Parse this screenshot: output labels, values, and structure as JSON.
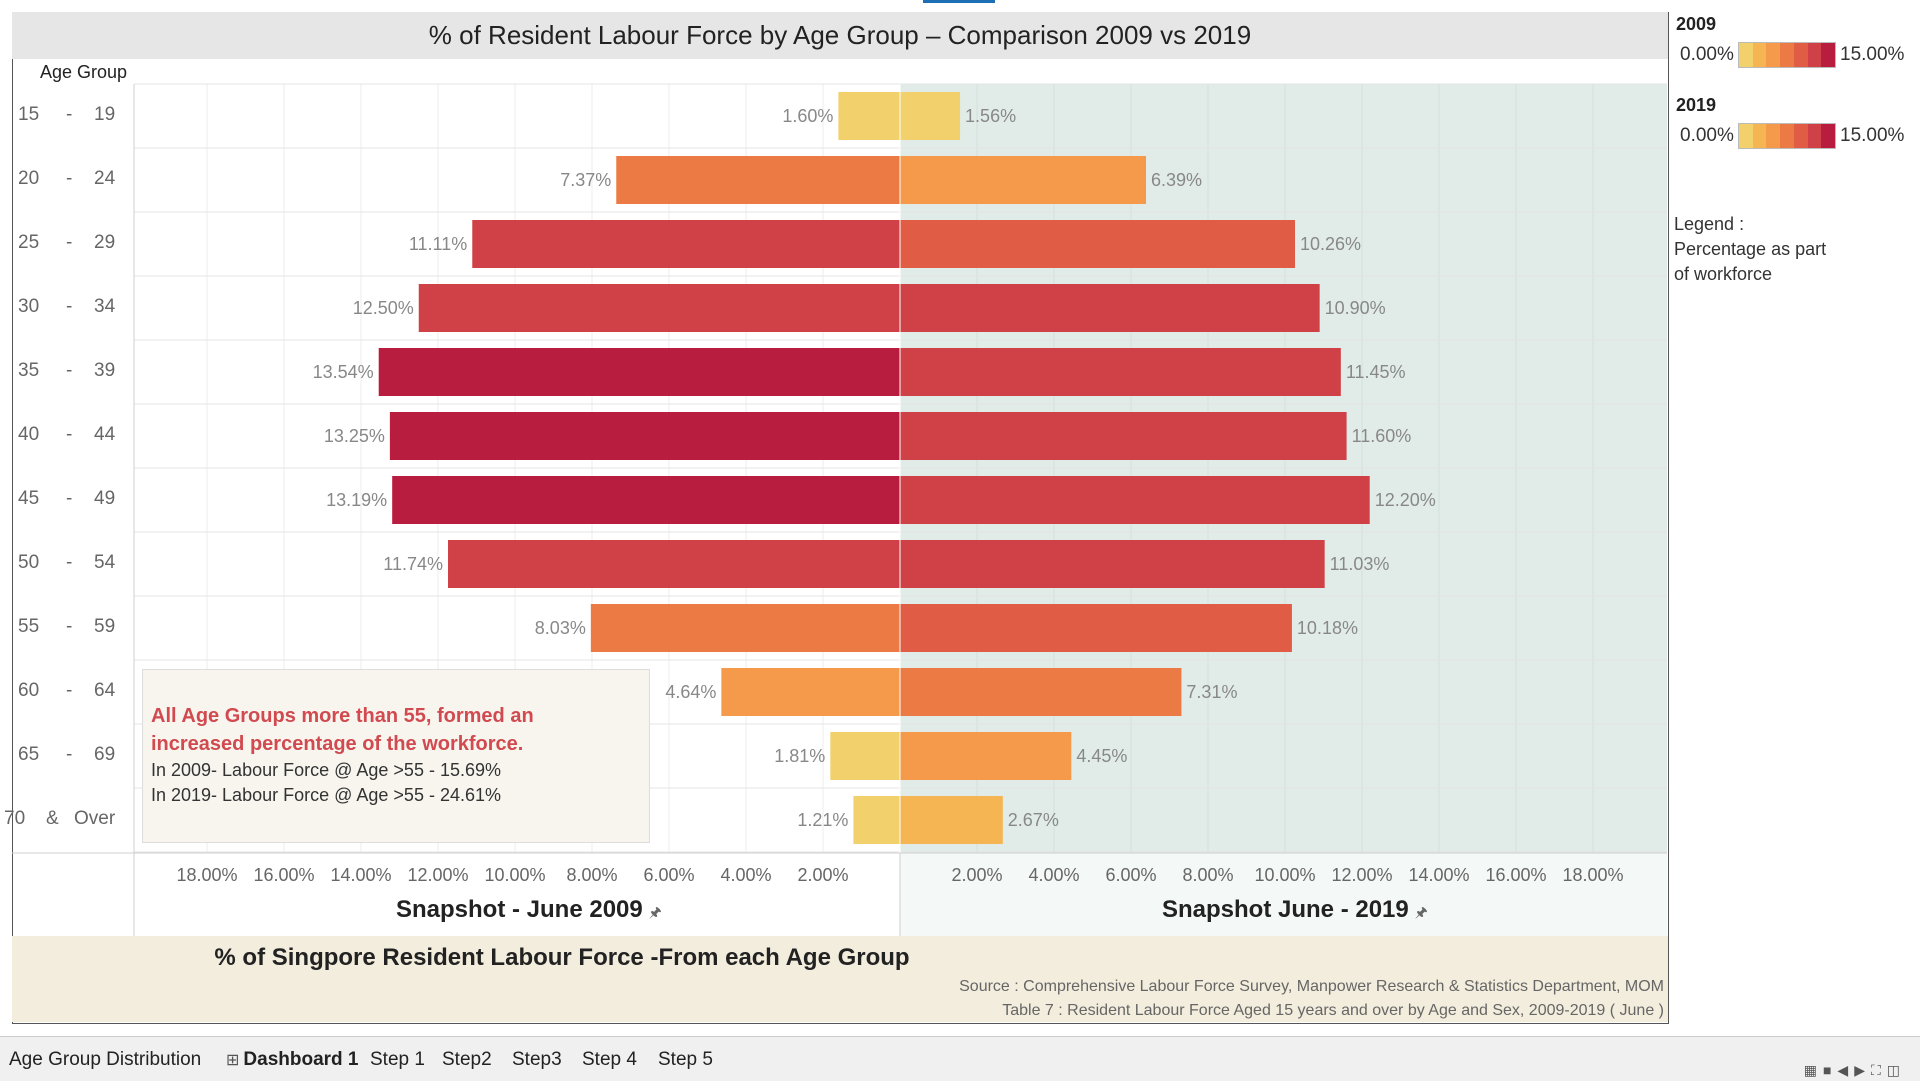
{
  "title": "% of Resident Labour Force by Age Group – Comparison 2009 vs 2019",
  "age_group_header": "Age Group",
  "rows": [
    {
      "start": "15",
      "sep": "-",
      "end": "19"
    },
    {
      "start": "20",
      "sep": "-",
      "end": "24"
    },
    {
      "start": "25",
      "sep": "-",
      "end": "29"
    },
    {
      "start": "30",
      "sep": "-",
      "end": "34"
    },
    {
      "start": "35",
      "sep": "-",
      "end": "39"
    },
    {
      "start": "40",
      "sep": "-",
      "end": "44"
    },
    {
      "start": "45",
      "sep": "-",
      "end": "49"
    },
    {
      "start": "50",
      "sep": "-",
      "end": "54"
    },
    {
      "start": "55",
      "sep": "-",
      "end": "59"
    },
    {
      "start": "60",
      "sep": "-",
      "end": "64"
    },
    {
      "start": "65",
      "sep": "-",
      "end": "69"
    },
    {
      "start": "70",
      "sep": "&",
      "end": "Over"
    }
  ],
  "chart_data": {
    "type": "bar",
    "orientation": "horizontal-butterfly",
    "categories": [
      "15 - 19",
      "20 - 24",
      "25 - 29",
      "30 - 34",
      "35 - 39",
      "40 - 44",
      "45 - 49",
      "50 - 54",
      "55 - 59",
      "60 - 64",
      "65 - 69",
      "70 & Over"
    ],
    "series": [
      {
        "name": "Snapshot - June 2009",
        "values": [
          1.6,
          7.37,
          11.11,
          12.5,
          13.54,
          13.25,
          13.19,
          11.74,
          8.03,
          4.64,
          1.81,
          1.21
        ],
        "labels": [
          "1.60%",
          "7.37%",
          "11.11%",
          "12.50%",
          "13.54%",
          "13.25%",
          "13.19%",
          "11.74%",
          "8.03%",
          "4.64%",
          "1.81%",
          "1.21%"
        ]
      },
      {
        "name": "Snapshot June - 2019",
        "values": [
          1.56,
          6.39,
          10.26,
          10.9,
          11.45,
          11.6,
          12.2,
          11.03,
          10.18,
          7.31,
          4.45,
          2.67
        ],
        "labels": [
          "1.56%",
          "6.39%",
          "10.26%",
          "10.90%",
          "11.45%",
          "11.60%",
          "12.20%",
          "11.03%",
          "10.18%",
          "7.31%",
          "4.45%",
          "2.67%"
        ]
      }
    ],
    "xlim": [
      0,
      20
    ],
    "ticks_left": [
      "18.00%",
      "16.00%",
      "14.00%",
      "12.00%",
      "10.00%",
      "8.00%",
      "6.00%",
      "4.00%",
      "2.00%"
    ],
    "ticks_right": [
      "2.00%",
      "4.00%",
      "6.00%",
      "8.00%",
      "10.00%",
      "12.00%",
      "14.00%",
      "16.00%",
      "18.00%"
    ],
    "tick_values": [
      18,
      16,
      14,
      12,
      10,
      8,
      6,
      4,
      2
    ],
    "color_ramp": [
      "#f2d06b",
      "#f5b552",
      "#f59a4a",
      "#ec7a45",
      "#e05c45",
      "#cf4146",
      "#b81c3f"
    ],
    "color_ramp_max": 15,
    "right_panel_bg": "#e1ece8",
    "grid": true
  },
  "left_panel_title": "Snapshot - June 2009",
  "right_panel_title": "Snapshot June - 2019",
  "pin_icon": "pin-icon",
  "annotation": {
    "highlight_1": "All Age Groups more than 55, formed an",
    "highlight_2": "increased percentage of the workforce.",
    "line_1": "In 2009- Labour Force @ Age >55 - 15.69%",
    "line_2": "In 2019- Labour Force @ Age >55 - 24.61%"
  },
  "footer": {
    "title": "% of Singpore Resident Labour Force -From each Age Group",
    "source_1": "Source : Comprehensive Labour Force Survey, Manpower Research & Statistics Department, MOM",
    "source_2": "Table 7 : Resident Labour Force Aged 15 years and over by Age and Sex, 2009-2019 ( June )"
  },
  "legend": {
    "y2009": {
      "year": "2009",
      "min": "0.00%",
      "max": "15.00%"
    },
    "y2019": {
      "year": "2019",
      "min": "0.00%",
      "max": "15.00%"
    },
    "note_1": "Legend :",
    "note_2": "Percentage as part",
    "note_3": "of workforce"
  },
  "tabs": [
    "Age Group Distribution",
    "Dashboard 1",
    "Step 1",
    "Step2",
    "Step3",
    "Step 4",
    "Step 5"
  ],
  "active_tab": "Dashboard 1"
}
